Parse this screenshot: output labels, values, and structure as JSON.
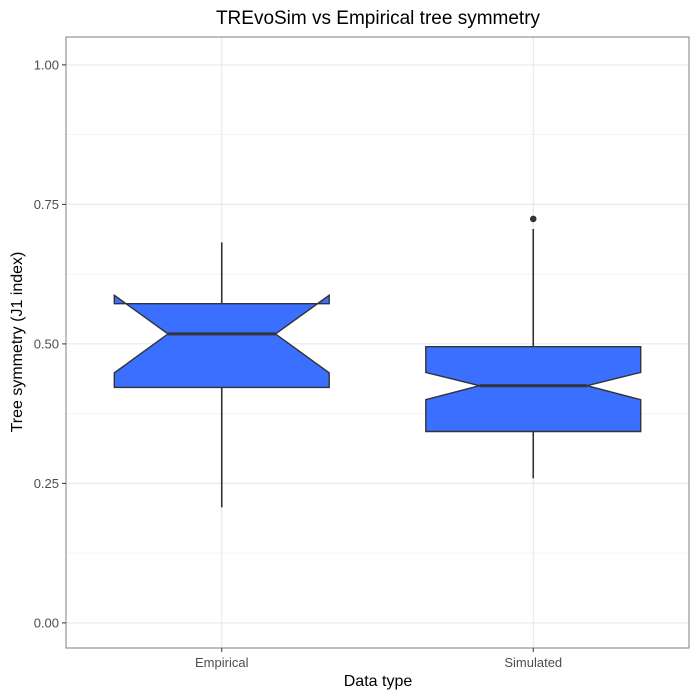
{
  "chart_data": {
    "type": "box",
    "title": "TREvoSim vs Empirical tree symmetry",
    "xlabel": "Data type",
    "ylabel": "Tree symmetry (J1 index)",
    "ylim": [
      -0.045,
      1.05
    ],
    "yticks": [
      0.0,
      0.25,
      0.5,
      0.75,
      1.0
    ],
    "ytick_labels": [
      "0.00",
      "0.25",
      "0.50",
      "0.75",
      "1.00"
    ],
    "grid": true,
    "notched": true,
    "categories": [
      "Empirical",
      "Simulated"
    ],
    "boxes": [
      {
        "category": "Empirical",
        "q1": 0.422,
        "median": 0.518,
        "q3": 0.572,
        "notch_low": 0.448,
        "notch_high": 0.587,
        "whisker_low": 0.207,
        "whisker_high": 0.682,
        "outliers": []
      },
      {
        "category": "Simulated",
        "q1": 0.343,
        "median": 0.425,
        "q3": 0.495,
        "notch_low": 0.4,
        "notch_high": 0.449,
        "whisker_low": 0.259,
        "whisker_high": 0.706,
        "outliers": [
          0.724
        ]
      }
    ],
    "fill_color": "#3A6FFF",
    "outline_color": "#333333"
  }
}
